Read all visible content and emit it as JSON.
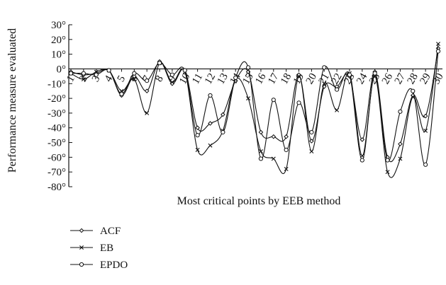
{
  "chart_data": {
    "type": "line",
    "title": "",
    "xlabel": "Most critical points by EEB method",
    "ylabel": "Performance measure evaluated",
    "x": [
      1,
      2,
      3,
      4,
      5,
      6,
      7,
      8,
      9,
      10,
      11,
      12,
      13,
      14,
      15,
      16,
      17,
      18,
      19,
      20,
      21,
      22,
      23,
      24,
      25,
      26,
      27,
      28,
      29,
      30
    ],
    "xtick_labels": [
      "1",
      "2",
      "3",
      "4",
      "5",
      "6",
      "7",
      "8",
      "9",
      "10",
      "11",
      "12",
      "13",
      "14",
      "15",
      "16",
      "17",
      "18",
      "19",
      "20",
      "21",
      "22",
      "23",
      "24",
      "25",
      "26",
      "27",
      "28",
      "29",
      "30"
    ],
    "ylim": [
      -80,
      30
    ],
    "yticks": [
      30,
      20,
      10,
      0,
      -10,
      -20,
      -30,
      -40,
      -50,
      -60,
      -70,
      -80
    ],
    "ytick_labels": [
      "30°",
      "20°",
      "10°",
      "0°",
      "-10°",
      "-20°",
      "-30°",
      "-40°",
      "-50°",
      "-60°",
      "-70°",
      "-80°"
    ],
    "grid": false,
    "legend_position": "below",
    "series": [
      {
        "name": "ACF",
        "marker": "diamond",
        "values": [
          -2,
          -4,
          -3,
          -1,
          -18,
          -5,
          -15,
          5,
          -10,
          -1,
          -40,
          -37,
          -31,
          -8,
          -2,
          -43,
          -46,
          -46,
          -4,
          -49,
          -12,
          -12,
          -5,
          -48,
          -2,
          -60,
          -51,
          -18,
          -32,
          14
        ]
      },
      {
        "name": "EB",
        "marker": "x",
        "values": [
          -3,
          -7,
          -2,
          -1,
          -15,
          -7,
          -30,
          4,
          -9,
          -2,
          -55,
          -52,
          -42,
          -7,
          -20,
          -56,
          -61,
          -68,
          -5,
          -56,
          -10,
          -28,
          -3,
          -59,
          -5,
          -70,
          -61,
          -19,
          -42,
          17
        ]
      },
      {
        "name": "EPDO",
        "marker": "circle",
        "values": [
          -3,
          -3,
          -4,
          -1,
          -17,
          -3,
          -8,
          4,
          -4,
          -1,
          -45,
          -18,
          -43,
          -6,
          1,
          -61,
          -21,
          -55,
          -23,
          -43,
          1,
          -14,
          -4,
          -62,
          -3,
          -62,
          -29,
          -15,
          -65,
          12
        ]
      }
    ]
  }
}
